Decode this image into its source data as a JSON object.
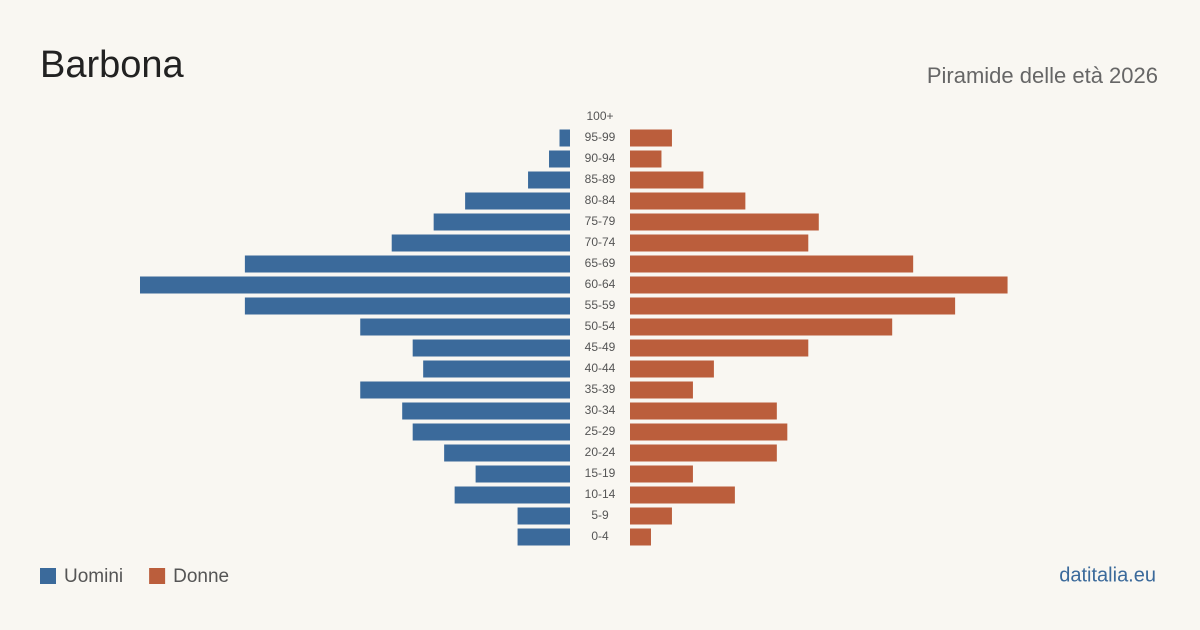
{
  "chart_data": {
    "type": "pyramid",
    "title": "Barbona",
    "subtitle": "Piramide delle età 2026",
    "source": "datitalia.eu",
    "categories": [
      "100+",
      "95-99",
      "90-94",
      "85-89",
      "80-84",
      "75-79",
      "70-74",
      "65-69",
      "60-64",
      "55-59",
      "50-54",
      "45-49",
      "40-44",
      "35-39",
      "30-34",
      "25-29",
      "20-24",
      "15-19",
      "10-14",
      "5-9",
      "0-4"
    ],
    "series": [
      {
        "name": "Uomini",
        "color": "#3b6a9b",
        "values": [
          0,
          1,
          2,
          4,
          10,
          13,
          17,
          31,
          41,
          31,
          20,
          15,
          14,
          20,
          16,
          15,
          12,
          9,
          11,
          5,
          5
        ]
      },
      {
        "name": "Donne",
        "color": "#bb5e3c",
        "values": [
          0,
          4,
          3,
          7,
          11,
          18,
          17,
          27,
          36,
          31,
          25,
          17,
          8,
          6,
          14,
          15,
          14,
          6,
          10,
          4,
          2
        ]
      }
    ]
  }
}
